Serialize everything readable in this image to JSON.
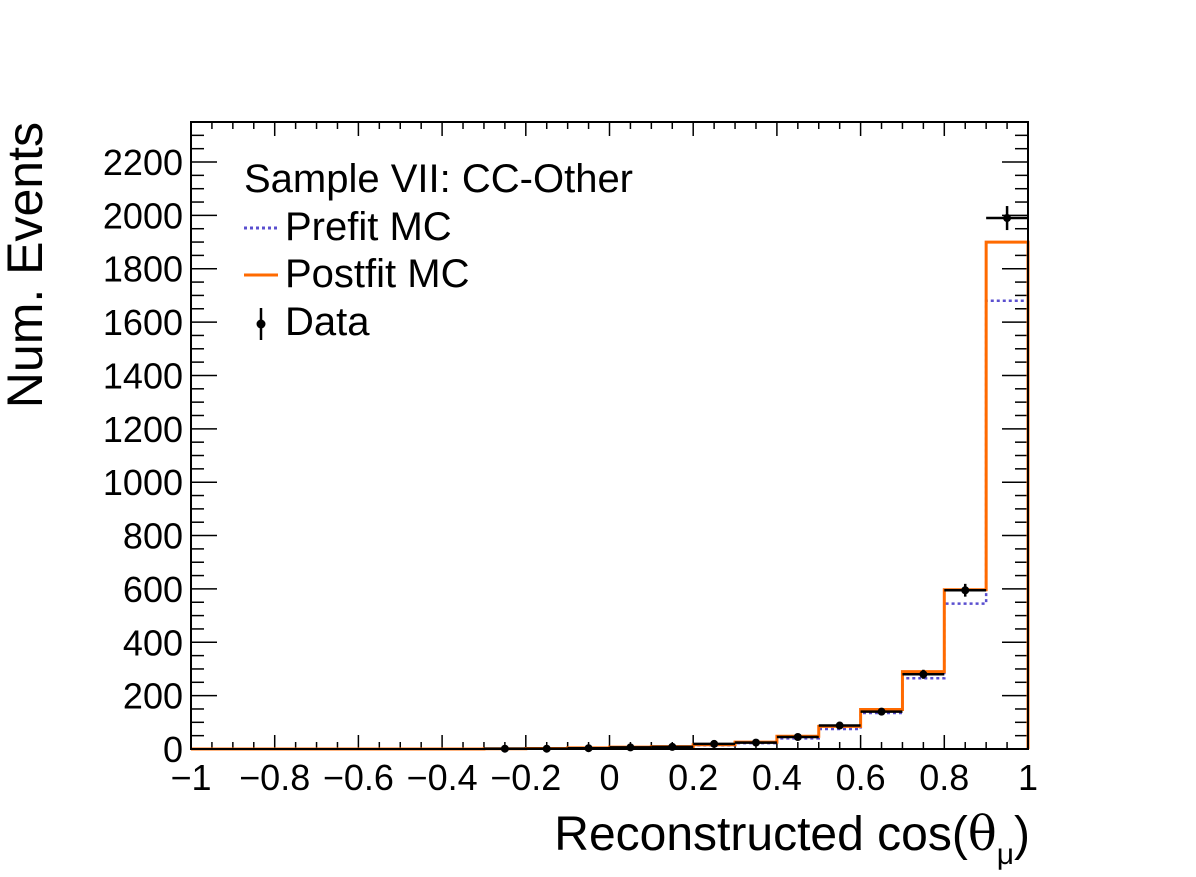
{
  "chart_data": {
    "type": "histogram",
    "title": "",
    "legend": {
      "placement": "top-left",
      "header": "Sample VII: CC-Other",
      "entries": [
        {
          "name": "Prefit MC",
          "style": "dotted",
          "color": "#5a4fcf"
        },
        {
          "name": "Postfit MC",
          "style": "solid",
          "color": "#ff6a00"
        },
        {
          "name": "Data",
          "style": "marker-errorbar",
          "color": "#000000"
        }
      ]
    },
    "xlabel": "Reconstructed cos(",
    "xlabel_symbol": "θ",
    "xlabel_subscript": "μ",
    "xlabel_close": ")",
    "ylabel": "Num. Events",
    "xlim": [
      -1,
      1
    ],
    "ylim": [
      0,
      2350
    ],
    "x_ticks": [
      -1,
      -0.8,
      -0.6,
      -0.4,
      -0.2,
      0,
      0.2,
      0.4,
      0.6,
      0.8,
      1
    ],
    "x_tick_labels": [
      "−1",
      "−0.8",
      "−0.6",
      "−0.4",
      "−0.2",
      "0",
      "0.2",
      "0.4",
      "0.6",
      "0.8",
      "1"
    ],
    "y_ticks": [
      0,
      200,
      400,
      600,
      800,
      1000,
      1200,
      1400,
      1600,
      1800,
      2000,
      2200
    ],
    "y_tick_labels": [
      "0",
      "200",
      "400",
      "600",
      "800",
      "1000",
      "1200",
      "1400",
      "1600",
      "1800",
      "2000",
      "2200"
    ],
    "bin_edges": [
      -1,
      -0.3,
      -0.2,
      -0.1,
      0,
      0.1,
      0.2,
      0.3,
      0.4,
      0.5,
      0.6,
      0.7,
      0.8,
      0.9,
      1
    ],
    "series": [
      {
        "name": "Prefit MC",
        "values": [
          0,
          1,
          2,
          4,
          6,
          8,
          14,
          22,
          40,
          75,
          135,
          265,
          545,
          1680
        ]
      },
      {
        "name": "Postfit MC",
        "values": [
          0,
          1,
          2,
          4,
          7,
          9,
          16,
          26,
          48,
          85,
          148,
          290,
          597,
          1900
        ]
      },
      {
        "name": "Data",
        "values": [
          null,
          1,
          1,
          3,
          6,
          8,
          19,
          24,
          45,
          88,
          140,
          280,
          595,
          1990
        ],
        "errors": [
          null,
          1,
          1,
          2,
          3,
          3,
          4,
          5,
          7,
          9,
          12,
          17,
          24,
          45
        ]
      }
    ]
  }
}
